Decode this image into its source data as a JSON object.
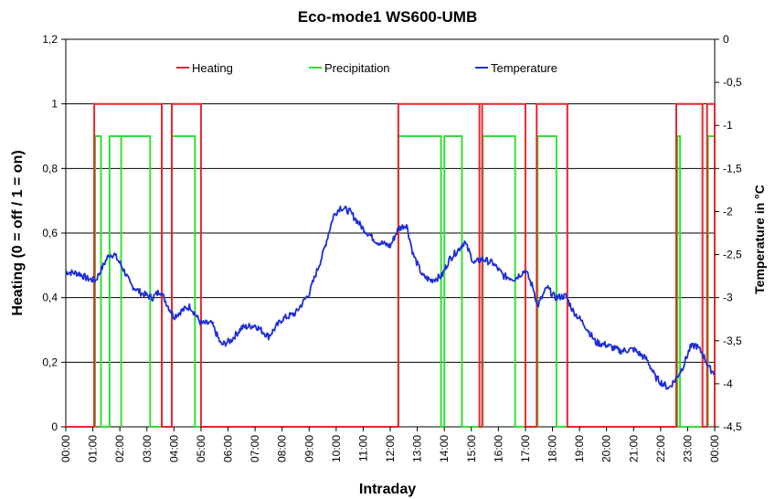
{
  "chart_data": {
    "type": "line",
    "title": "Eco-mode1 WS600-UMB",
    "xlabel": "Intraday",
    "ylabel": "Heating (0 = off / 1 = on)",
    "ylabel_right": "Temperature in °C",
    "x_ticks": [
      "00:00",
      "01:00",
      "02:00",
      "03:00",
      "04:00",
      "05:00",
      "06:00",
      "07:00",
      "08:00",
      "09:00",
      "10:00",
      "11:00",
      "12:00",
      "13:00",
      "14:00",
      "15:00",
      "16:00",
      "17:00",
      "18:00",
      "19:00",
      "20:00",
      "21:00",
      "22:00",
      "23:00",
      "00:00"
    ],
    "xlim_hours": [
      0,
      24
    ],
    "ylim": [
      0,
      1.2
    ],
    "y_ticks": [
      "0",
      "0,2",
      "0,4",
      "0,6",
      "0,8",
      "1",
      "1,2"
    ],
    "y_tick_values": [
      0,
      0.2,
      0.4,
      0.6,
      0.8,
      1.0,
      1.2
    ],
    "y2lim": [
      -4.5,
      0
    ],
    "y2_ticks": [
      "0",
      "-0,5",
      "-1",
      "-1,5",
      "-2",
      "-2,5",
      "-3",
      "-3,5",
      "-4",
      "-4,5"
    ],
    "y2_tick_values": [
      0,
      -0.5,
      -1,
      -1.5,
      -2,
      -2.5,
      -3,
      -3.5,
      -4,
      -4.5
    ],
    "grid": "horizontal",
    "legend_position": "top",
    "series": [
      {
        "name": "Heating",
        "color": "#e8262c",
        "axis": "left",
        "on_value": 1.0,
        "on_intervals_hours": [
          [
            1.05,
            3.55
          ],
          [
            3.92,
            5.0
          ],
          [
            12.3,
            15.3
          ],
          [
            15.4,
            17.0
          ],
          [
            17.42,
            18.55
          ],
          [
            22.58,
            23.55
          ],
          [
            23.72,
            24.0
          ]
        ]
      },
      {
        "name": "Precipitation",
        "color": "#33e033",
        "axis": "left",
        "on_value": 0.9,
        "on_intervals_hours": [
          [
            1.08,
            1.3
          ],
          [
            1.62,
            2.05
          ],
          [
            2.05,
            3.12
          ],
          [
            3.92,
            4.78
          ],
          [
            12.3,
            13.88
          ],
          [
            14.0,
            14.65
          ],
          [
            15.42,
            16.62
          ],
          [
            17.45,
            18.15
          ],
          [
            22.62,
            22.72
          ],
          [
            23.75,
            24.0
          ]
        ]
      },
      {
        "name": "Temperature",
        "color": "#1f2fd6",
        "axis": "right",
        "points_hours_celsius": [
          [
            0,
            -2.7
          ],
          [
            0.5,
            -2.72
          ],
          [
            0.8,
            -2.78
          ],
          [
            1.1,
            -2.8
          ],
          [
            1.35,
            -2.65
          ],
          [
            1.6,
            -2.5
          ],
          [
            1.8,
            -2.5
          ],
          [
            2.1,
            -2.65
          ],
          [
            2.4,
            -2.85
          ],
          [
            2.8,
            -2.95
          ],
          [
            3.2,
            -3.0
          ],
          [
            3.5,
            -2.92
          ],
          [
            3.75,
            -3.08
          ],
          [
            4.0,
            -3.22
          ],
          [
            4.3,
            -3.15
          ],
          [
            4.6,
            -3.1
          ],
          [
            5.0,
            -3.3
          ],
          [
            5.4,
            -3.3
          ],
          [
            5.75,
            -3.55
          ],
          [
            6.1,
            -3.5
          ],
          [
            6.5,
            -3.35
          ],
          [
            7.0,
            -3.32
          ],
          [
            7.5,
            -3.45
          ],
          [
            8.0,
            -3.25
          ],
          [
            8.5,
            -3.18
          ],
          [
            9.0,
            -2.95
          ],
          [
            9.5,
            -2.5
          ],
          [
            9.9,
            -2.05
          ],
          [
            10.15,
            -1.95
          ],
          [
            10.5,
            -2.0
          ],
          [
            11.0,
            -2.2
          ],
          [
            11.5,
            -2.35
          ],
          [
            12.0,
            -2.4
          ],
          [
            12.3,
            -2.2
          ],
          [
            12.6,
            -2.15
          ],
          [
            12.85,
            -2.5
          ],
          [
            13.2,
            -2.75
          ],
          [
            13.5,
            -2.8
          ],
          [
            13.9,
            -2.75
          ],
          [
            14.2,
            -2.55
          ],
          [
            14.5,
            -2.45
          ],
          [
            14.75,
            -2.35
          ],
          [
            15.1,
            -2.6
          ],
          [
            15.4,
            -2.55
          ],
          [
            15.8,
            -2.6
          ],
          [
            16.2,
            -2.75
          ],
          [
            16.6,
            -2.78
          ],
          [
            17.0,
            -2.68
          ],
          [
            17.3,
            -2.9
          ],
          [
            17.45,
            -3.1
          ],
          [
            17.8,
            -2.88
          ],
          [
            18.1,
            -3.0
          ],
          [
            18.5,
            -2.98
          ],
          [
            18.75,
            -3.15
          ],
          [
            19.2,
            -3.32
          ],
          [
            19.6,
            -3.52
          ],
          [
            20.0,
            -3.55
          ],
          [
            20.5,
            -3.62
          ],
          [
            21.0,
            -3.6
          ],
          [
            21.5,
            -3.72
          ],
          [
            21.8,
            -3.92
          ],
          [
            22.0,
            -3.98
          ],
          [
            22.3,
            -4.05
          ],
          [
            22.55,
            -3.95
          ],
          [
            22.8,
            -3.82
          ],
          [
            23.1,
            -3.58
          ],
          [
            23.3,
            -3.55
          ],
          [
            23.55,
            -3.65
          ],
          [
            23.8,
            -3.82
          ],
          [
            24.0,
            -3.88
          ]
        ]
      }
    ]
  }
}
